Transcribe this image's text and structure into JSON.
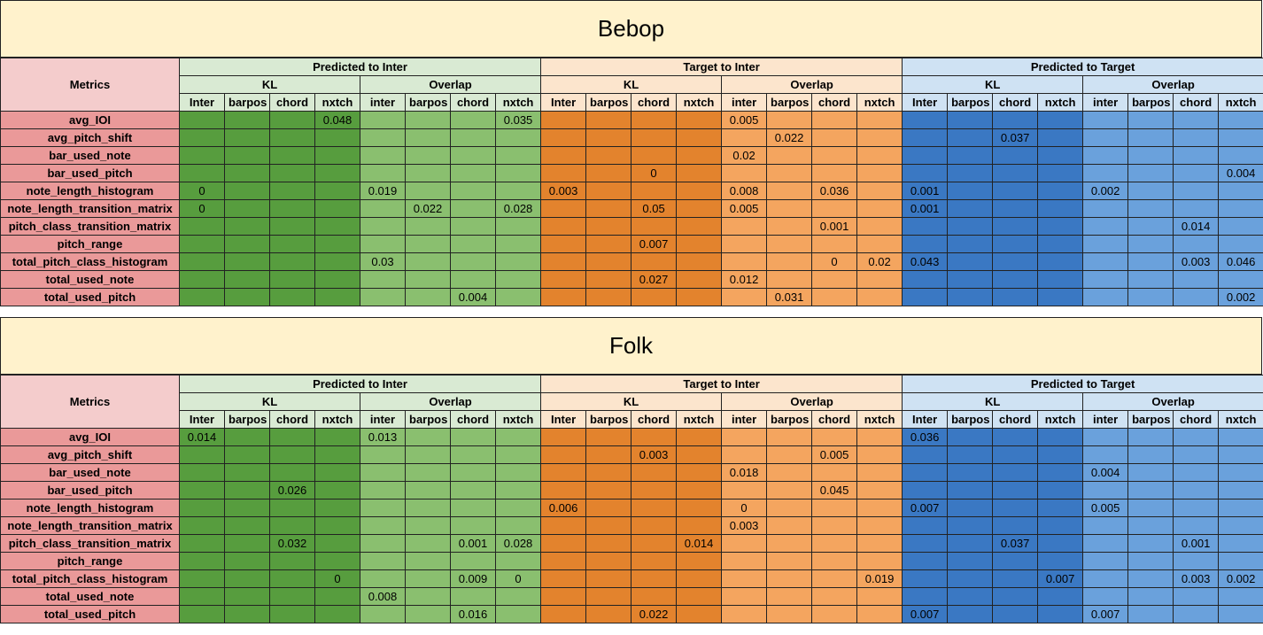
{
  "blocks": [
    {
      "title": "Bebop",
      "metrics_header": "Metrics",
      "groups": [
        "Predicted to Inter",
        "Target to Inter",
        "Predicted to Target"
      ],
      "subgroups": [
        "KL",
        "Overlap"
      ],
      "columns": [
        "Inter",
        "barpos",
        "chord",
        "nxtch"
      ],
      "overlap_columns": [
        "inter",
        "barpos",
        "chord",
        "nxtch"
      ],
      "rows": [
        {
          "metric": "avg_IOI",
          "values": [
            "",
            "",
            "",
            "0.048",
            "",
            "",
            "",
            "0.035",
            "",
            "",
            "",
            "",
            "0.005",
            "",
            "",
            "",
            "",
            "",
            "",
            "",
            "",
            "",
            "",
            ""
          ]
        },
        {
          "metric": "avg_pitch_shift",
          "values": [
            "",
            "",
            "",
            "",
            "",
            "",
            "",
            "",
            "",
            "",
            "",
            "",
            "",
            "0.022",
            "",
            "",
            "",
            "",
            "0.037",
            "",
            "",
            "",
            "",
            ""
          ]
        },
        {
          "metric": "bar_used_note",
          "values": [
            "",
            "",
            "",
            "",
            "",
            "",
            "",
            "",
            "",
            "",
            "",
            "",
            "0.02",
            "",
            "",
            "",
            "",
            "",
            "",
            "",
            "",
            "",
            "",
            ""
          ]
        },
        {
          "metric": "bar_used_pitch",
          "values": [
            "",
            "",
            "",
            "",
            "",
            "",
            "",
            "",
            "",
            "",
            "0",
            "",
            "",
            "",
            "",
            "",
            "",
            "",
            "",
            "",
            "",
            "",
            "",
            "0.004"
          ]
        },
        {
          "metric": "note_length_histogram",
          "values": [
            "0",
            "",
            "",
            "",
            "0.019",
            "",
            "",
            "",
            "0.003",
            "",
            "",
            "",
            "0.008",
            "",
            "0.036",
            "",
            "0.001",
            "",
            "",
            "",
            "0.002",
            "",
            "",
            ""
          ]
        },
        {
          "metric": "note_length_transition_matrix",
          "values": [
            "0",
            "",
            "",
            "",
            "",
            "0.022",
            "",
            "0.028",
            "",
            "",
            "0.05",
            "",
            "0.005",
            "",
            "",
            "",
            "0.001",
            "",
            "",
            "",
            "",
            "",
            "",
            ""
          ]
        },
        {
          "metric": "pitch_class_transition_matrix",
          "values": [
            "",
            "",
            "",
            "",
            "",
            "",
            "",
            "",
            "",
            "",
            "",
            "",
            "",
            "",
            "0.001",
            "",
            "",
            "",
            "",
            "",
            "",
            "",
            "0.014",
            ""
          ]
        },
        {
          "metric": "pitch_range",
          "values": [
            "",
            "",
            "",
            "",
            "",
            "",
            "",
            "",
            "",
            "",
            "0.007",
            "",
            "",
            "",
            "",
            "",
            "",
            "",
            "",
            "",
            "",
            "",
            "",
            ""
          ]
        },
        {
          "metric": "total_pitch_class_histogram",
          "values": [
            "",
            "",
            "",
            "",
            "0.03",
            "",
            "",
            "",
            "",
            "",
            "",
            "",
            "",
            "",
            "0",
            "0.02",
            "0.043",
            "",
            "",
            "",
            "",
            "",
            "0.003",
            "0.046"
          ]
        },
        {
          "metric": "total_used_note",
          "values": [
            "",
            "",
            "",
            "",
            "",
            "",
            "",
            "",
            "",
            "",
            "0.027",
            "",
            "0.012",
            "",
            "",
            "",
            "",
            "",
            "",
            "",
            "",
            "",
            "",
            ""
          ]
        },
        {
          "metric": "total_used_pitch",
          "values": [
            "",
            "",
            "",
            "",
            "",
            "",
            "0.004",
            "",
            "",
            "",
            "",
            "",
            "",
            "0.031",
            "",
            "",
            "",
            "",
            "",
            "",
            "",
            "",
            "",
            "0.002"
          ]
        }
      ]
    },
    {
      "title": "Folk",
      "metrics_header": "Metrics",
      "groups": [
        "Predicted to Inter",
        "Target to Inter",
        "Predicted to Target"
      ],
      "subgroups": [
        "KL",
        "Overlap"
      ],
      "columns": [
        "Inter",
        "barpos",
        "chord",
        "nxtch"
      ],
      "overlap_columns": [
        "inter",
        "barpos",
        "chord",
        "nxtch"
      ],
      "rows": [
        {
          "metric": "avg_IOI",
          "values": [
            "0.014",
            "",
            "",
            "",
            "0.013",
            "",
            "",
            "",
            "",
            "",
            "",
            "",
            "",
            "",
            "",
            "",
            "0.036",
            "",
            "",
            "",
            "",
            "",
            "",
            ""
          ]
        },
        {
          "metric": "avg_pitch_shift",
          "values": [
            "",
            "",
            "",
            "",
            "",
            "",
            "",
            "",
            "",
            "",
            "0.003",
            "",
            "",
            "",
            "0.005",
            "",
            "",
            "",
            "",
            "",
            "",
            "",
            "",
            ""
          ]
        },
        {
          "metric": "bar_used_note",
          "values": [
            "",
            "",
            "",
            "",
            "",
            "",
            "",
            "",
            "",
            "",
            "",
            "",
            "0.018",
            "",
            "",
            "",
            "",
            "",
            "",
            "",
            "0.004",
            "",
            "",
            ""
          ]
        },
        {
          "metric": "bar_used_pitch",
          "values": [
            "",
            "",
            "0.026",
            "",
            "",
            "",
            "",
            "",
            "",
            "",
            "",
            "",
            "",
            "",
            "0.045",
            "",
            "",
            "",
            "",
            "",
            "",
            "",
            "",
            ""
          ]
        },
        {
          "metric": "note_length_histogram",
          "values": [
            "",
            "",
            "",
            "",
            "",
            "",
            "",
            "",
            "0.006",
            "",
            "",
            "",
            "0",
            "",
            "",
            "",
            "0.007",
            "",
            "",
            "",
            "0.005",
            "",
            "",
            ""
          ]
        },
        {
          "metric": "note_length_transition_matrix",
          "values": [
            "",
            "",
            "",
            "",
            "",
            "",
            "",
            "",
            "",
            "",
            "",
            "",
            "0.003",
            "",
            "",
            "",
            "",
            "",
            "",
            "",
            "",
            "",
            "",
            ""
          ]
        },
        {
          "metric": "pitch_class_transition_matrix",
          "values": [
            "",
            "",
            "0.032",
            "",
            "",
            "",
            "0.001",
            "0.028",
            "",
            "",
            "",
            "0.014",
            "",
            "",
            "",
            "",
            "",
            "",
            "0.037",
            "",
            "",
            "",
            "0.001",
            ""
          ]
        },
        {
          "metric": "pitch_range",
          "values": [
            "",
            "",
            "",
            "",
            "",
            "",
            "",
            "",
            "",
            "",
            "",
            "",
            "",
            "",
            "",
            "",
            "",
            "",
            "",
            "",
            "",
            "",
            "",
            ""
          ]
        },
        {
          "metric": "total_pitch_class_histogram",
          "values": [
            "",
            "",
            "",
            "0",
            "",
            "",
            "0.009",
            "0",
            "",
            "",
            "",
            "",
            "",
            "",
            "",
            "0.019",
            "",
            "",
            "",
            "0.007",
            "",
            "",
            "0.003",
            "0.002"
          ]
        },
        {
          "metric": "total_used_note",
          "values": [
            "",
            "",
            "",
            "",
            "0.008",
            "",
            "",
            "",
            "",
            "",
            "",
            "",
            "",
            "",
            "",
            "",
            "",
            "",
            "",
            "",
            "",
            "",
            "",
            ""
          ]
        },
        {
          "metric": "total_used_pitch",
          "values": [
            "",
            "",
            "",
            "",
            "",
            "",
            "0.016",
            "",
            "",
            "",
            "0.022",
            "",
            "",
            "",
            "",
            "",
            "0.007",
            "",
            "",
            "",
            "0.007",
            "",
            "",
            ""
          ]
        }
      ]
    }
  ]
}
